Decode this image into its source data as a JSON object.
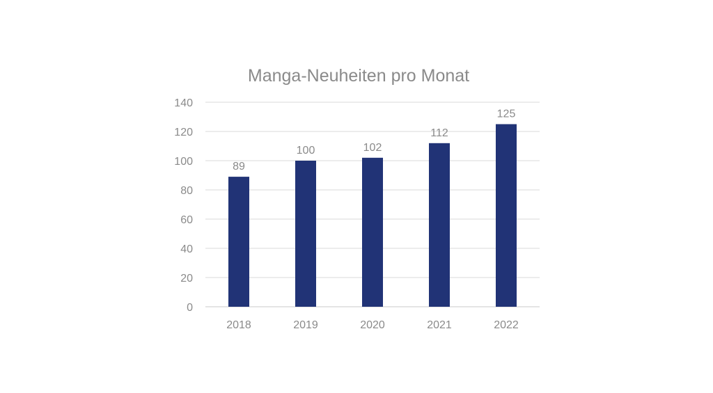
{
  "chart_data": {
    "type": "bar",
    "title": "Manga-Neuheiten pro Monat",
    "categories": [
      "2018",
      "2019",
      "2020",
      "2021",
      "2022"
    ],
    "values": [
      89,
      100,
      102,
      112,
      125
    ],
    "data_labels": [
      "89",
      "100",
      "102",
      "112",
      "125"
    ],
    "yticks": [
      "0",
      "20",
      "40",
      "60",
      "80",
      "100",
      "120",
      "140"
    ],
    "ylim": [
      0,
      140
    ],
    "grid": true,
    "legend": "none",
    "colors": {
      "bar": "#213376",
      "text": "#8a8a8a",
      "grid": "#d9d9d9",
      "axis": "#c8c8c8"
    }
  }
}
